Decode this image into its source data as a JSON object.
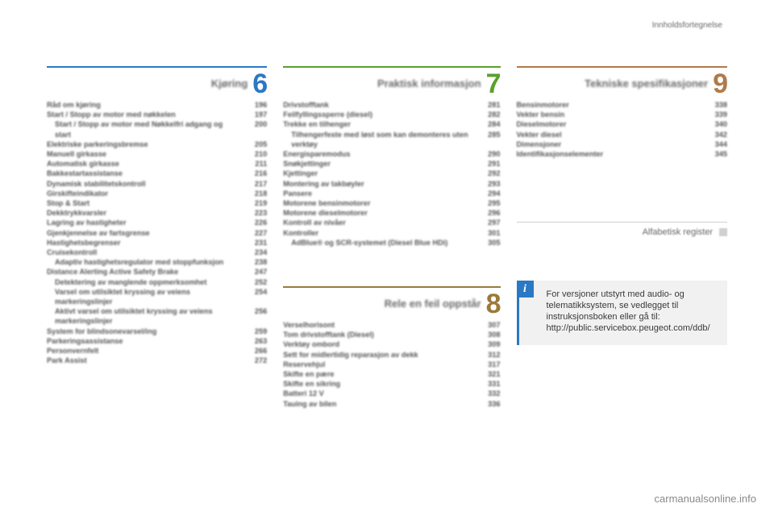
{
  "colors": {
    "accent6": "#2b78c4",
    "accent7": "#5aa02c",
    "accent8": "#9a7a3a",
    "accent9": "#b07a4a",
    "rule": "#cfd0d0",
    "info_bg": "#f1f1f1",
    "page_bg": "#ffffff"
  },
  "header": "Innholdsfortegnelse",
  "watermark": "carmanualsonline.info",
  "alpha_register": "Alfabetisk register",
  "info_box": {
    "text": "For versjoner utstyrt med audio- og telematikksystem, se vedlegget til instruksjonsboken eller gå til:",
    "url": "http://public.servicebox.peugeot.com/ddb/"
  },
  "sections": [
    {
      "id": 6,
      "title": "Kjøring",
      "items": [
        {
          "label": "Råd om kjøring",
          "page": 196
        },
        {
          "label": "Start / Stopp av motor med nøkkelen",
          "page": 197
        },
        {
          "label": "Start / Stopp av motor med Nøkkelfri adgang og start",
          "page": 200,
          "sub": true
        },
        {
          "label": "Elektriske parkeringsbremse",
          "page": 205
        },
        {
          "label": "Manuell girkasse",
          "page": 210
        },
        {
          "label": "Automatisk girkasse",
          "page": 211
        },
        {
          "label": "Bakkestartassistanse",
          "page": 216
        },
        {
          "label": "Dynamisk stabilitetskontroll",
          "page": 217
        },
        {
          "label": "Girskifteindikator",
          "page": 218
        },
        {
          "label": "Stop & Start",
          "page": 219
        },
        {
          "label": "Dekktrykkvarsler",
          "page": 223
        },
        {
          "label": "Lagring av hastigheter",
          "page": 226
        },
        {
          "label": "Gjenkjennelse av fartsgrense",
          "page": 227
        },
        {
          "label": "Hastighetsbegrenser",
          "page": 231
        },
        {
          "label": "Cruisekontroll",
          "page": 234
        },
        {
          "label": "Adaptiv hastighetsregulator med stoppfunksjon",
          "page": 238,
          "sub": true
        },
        {
          "label": "Distance Alerting Active Safety Brake",
          "page": 247
        },
        {
          "label": "Detektering av manglende oppmerksomhet",
          "page": 252,
          "sub": true
        },
        {
          "label": "Varsel om utilsiktet kryssing av veiens markeringslinjer",
          "page": 254,
          "sub": true
        },
        {
          "label": "Aktivt varsel om utilsiktet kryssing av veiens markeringslinjer",
          "page": 256,
          "sub": true
        },
        {
          "label": "System for blindsonevarsel/ing",
          "page": 259
        },
        {
          "label": "Parkeringsassistanse",
          "page": 263
        },
        {
          "label": "Personvernfelt",
          "page": 266
        },
        {
          "label": "Park Assist",
          "page": 272
        }
      ]
    },
    {
      "id": 7,
      "title": "Praktisk informasjon",
      "items": [
        {
          "label": "Drivstofftank",
          "page": 281
        },
        {
          "label": "Feilfyllingssperre (diesel)",
          "page": 282
        },
        {
          "label": "Trekke en tilhenger",
          "page": 284
        },
        {
          "label": "Tilhengerfeste med løst som kan demonteres uten verktøy",
          "page": 285,
          "sub": true
        },
        {
          "label": "Energisparemodus",
          "page": 290
        },
        {
          "label": "Snøkjettinger",
          "page": 291
        },
        {
          "label": "Kjettinger",
          "page": 292
        },
        {
          "label": "Montering av takbøyler",
          "page": 293
        },
        {
          "label": "Pansere",
          "page": 294
        },
        {
          "label": "Motorene bensinmotorer",
          "page": 295
        },
        {
          "label": "Motorene dieselmotorer",
          "page": 296
        },
        {
          "label": "Kontroll av nivåer",
          "page": 297
        },
        {
          "label": "Kontroller",
          "page": 301
        },
        {
          "label": "AdBlue® og SCR-systemet (Diesel Blue HDi)",
          "page": 305,
          "sub": true
        }
      ]
    },
    {
      "id": 8,
      "title": "Rele en feil oppstår",
      "items": [
        {
          "label": "Verselhorisont",
          "page": 307
        },
        {
          "label": "Tom drivstofftank (Diesel)",
          "page": 308
        },
        {
          "label": "Verktøy ombord",
          "page": 309
        },
        {
          "label": "Sett for midlertidig reparasjon av dekk",
          "page": 312
        },
        {
          "label": "Reservehjul",
          "page": 317
        },
        {
          "label": "Skifte en pære",
          "page": 321
        },
        {
          "label": "Skifte en sikring",
          "page": 331
        },
        {
          "label": "Batteri 12 V",
          "page": 332
        },
        {
          "label": "Tauing av bilen",
          "page": 336
        }
      ]
    },
    {
      "id": 9,
      "title": "Tekniske spesifikasjoner",
      "items": [
        {
          "label": "Bensinmotorer",
          "page": 338
        },
        {
          "label": "Vekter bensin",
          "page": 339
        },
        {
          "label": "Dieselmotorer",
          "page": 340
        },
        {
          "label": "Vekter diesel",
          "page": 342
        },
        {
          "label": "Dimensjoner",
          "page": 344
        },
        {
          "label": "Identifikasjonselementer",
          "page": 345
        }
      ]
    }
  ]
}
